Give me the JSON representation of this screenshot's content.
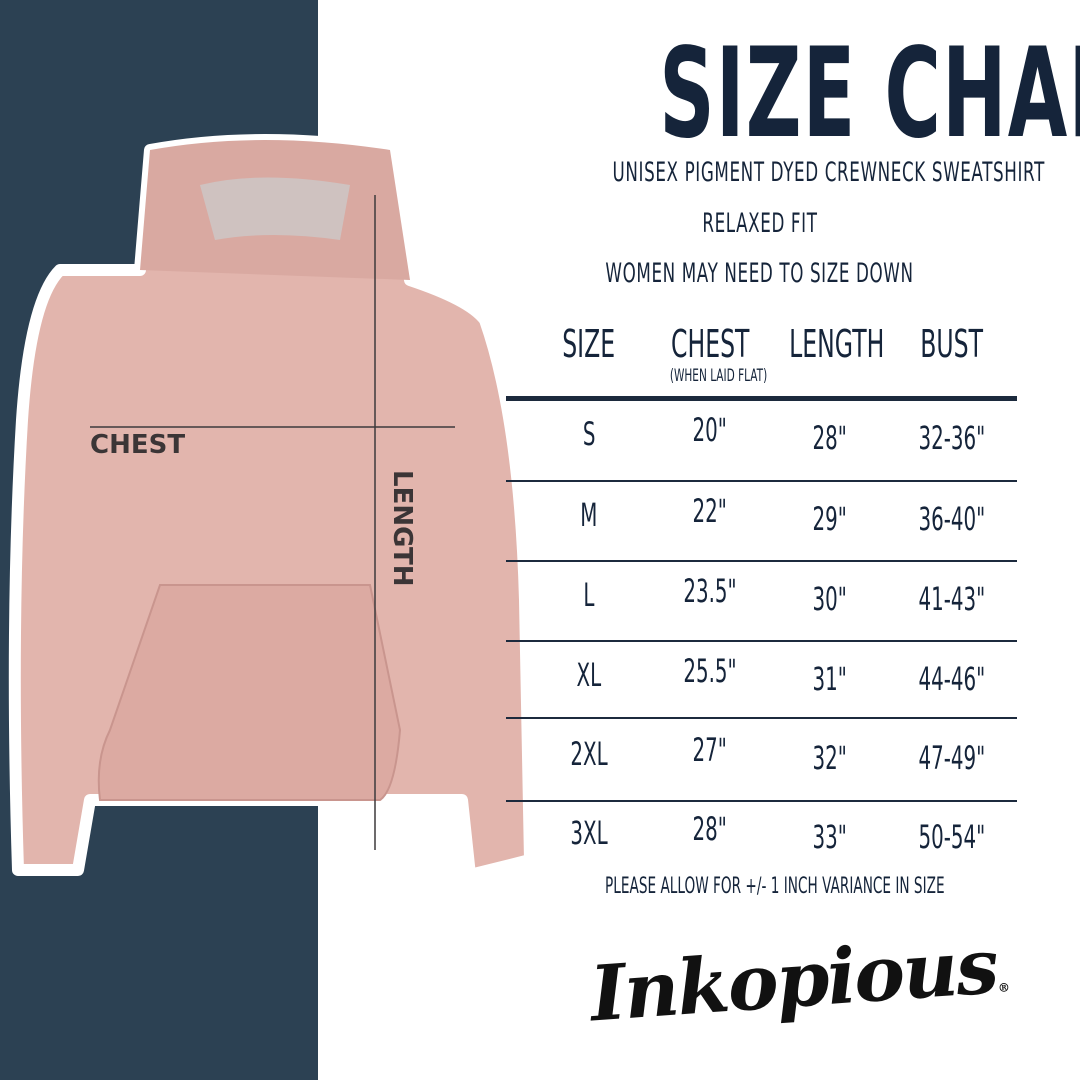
{
  "title": "SIZE CHART",
  "subtitle_lines": [
    "UNISEX PIGMENT DYED CREWNECK SWEATSHIRT",
    "RELAXED FIT",
    "WOMEN MAY NEED TO SIZE DOWN"
  ],
  "table": {
    "headers": [
      "SIZE",
      "CHEST",
      "LENGTH",
      "BUST"
    ],
    "chest_note": "(WHEN LAID FLAT)",
    "rows": [
      [
        "S",
        "20\"",
        "28\"",
        "32-36\""
      ],
      [
        "M",
        "22\"",
        "29\"",
        "36-40\""
      ],
      [
        "L",
        "23.5\"",
        "30\"",
        "41-43\""
      ],
      [
        "XL",
        "25.5\"",
        "31\"",
        "44-46\""
      ],
      [
        "2XL",
        "27\"",
        "32\"",
        "47-49\""
      ],
      [
        "3XL",
        "28\"",
        "33\"",
        "50-54\""
      ]
    ]
  },
  "footnote": "PLEASE ALLOW FOR +/- 1 INCH VARIANCE IN SIZE",
  "diagram": {
    "chest_label": "CHEST",
    "length_label": "LENGTH"
  },
  "brand": {
    "logo_text": "Inkopious",
    "registered": "®"
  },
  "colors": {
    "navy_panel": "#2c4153",
    "text": "#15243a",
    "hoodie": "#e2b5ad"
  }
}
